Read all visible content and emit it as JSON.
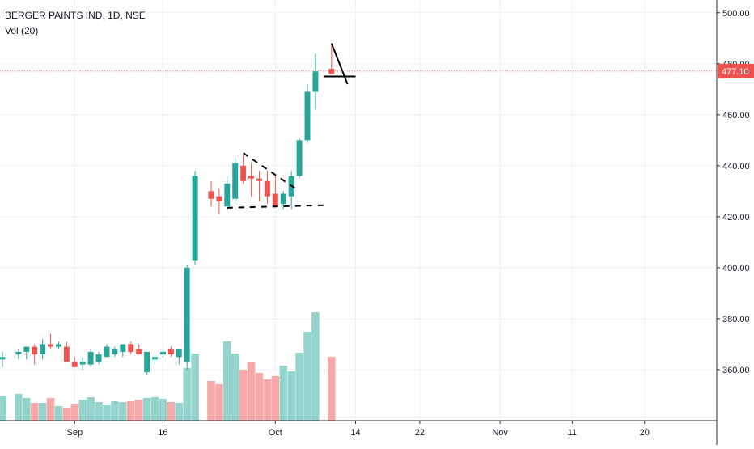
{
  "legend": {
    "title": "BERGER PAINTS IND, 1D, NSE",
    "volume": "Vol (20)"
  },
  "colors": {
    "up": "#26a69a",
    "down": "#ef5350",
    "vol_up": "#94d4cd",
    "vol_down": "#f6a9a8",
    "grid": "#eef0f3",
    "axis_text": "#131722",
    "price_line": "#ef5350",
    "drawing": "#000000"
  },
  "chart_data": {
    "type": "candlestick",
    "title": "BERGER PAINTS IND, 1D, NSE",
    "indicator": "Vol (20)",
    "last_price": 477.1,
    "last_price_label": "477.10",
    "y_axis": {
      "range": [
        340,
        505
      ],
      "ticks": [
        360,
        380,
        400,
        420,
        440,
        460,
        480,
        500
      ],
      "tick_labels": [
        "360.00",
        "380.00",
        "400.00",
        "420.00",
        "440.00",
        "460.00",
        "480.00",
        "500.00"
      ]
    },
    "x_axis": {
      "range_days": [
        0,
        89
      ],
      "ticks": [
        {
          "day": 9,
          "label": "Sep"
        },
        {
          "day": 20,
          "label": "16"
        },
        {
          "day": 34,
          "label": "Oct"
        },
        {
          "day": 44,
          "label": "14"
        },
        {
          "day": 52,
          "label": "22"
        },
        {
          "day": 62,
          "label": "Nov"
        },
        {
          "day": 71,
          "label": "11"
        },
        {
          "day": 80,
          "label": "20"
        }
      ]
    },
    "candles": [
      {
        "day": 0,
        "o": 364,
        "h": 367,
        "l": 361,
        "c": 365,
        "v": 31
      },
      {
        "day": 2,
        "o": 366,
        "h": 368,
        "l": 364,
        "c": 367,
        "v": 33
      },
      {
        "day": 3,
        "o": 367,
        "h": 369,
        "l": 364,
        "c": 369,
        "v": 28
      },
      {
        "day": 4,
        "o": 369,
        "h": 370,
        "l": 362,
        "c": 366,
        "v": 22
      },
      {
        "day": 5,
        "o": 366,
        "h": 372,
        "l": 364,
        "c": 370,
        "v": 22
      },
      {
        "day": 6,
        "o": 370,
        "h": 374,
        "l": 368,
        "c": 369,
        "v": 28
      },
      {
        "day": 7,
        "o": 369,
        "h": 371,
        "l": 368,
        "c": 370,
        "v": 18
      },
      {
        "day": 8,
        "o": 369,
        "h": 371,
        "l": 363,
        "c": 363,
        "v": 16
      },
      {
        "day": 9,
        "o": 363,
        "h": 365,
        "l": 361,
        "c": 361,
        "v": 21
      },
      {
        "day": 10,
        "o": 362,
        "h": 365,
        "l": 360,
        "c": 363,
        "v": 26
      },
      {
        "day": 11,
        "o": 362,
        "h": 368,
        "l": 361,
        "c": 367,
        "v": 29
      },
      {
        "day": 12,
        "o": 363,
        "h": 367,
        "l": 362,
        "c": 366,
        "v": 23
      },
      {
        "day": 13,
        "o": 365,
        "h": 370,
        "l": 365,
        "c": 369,
        "v": 20
      },
      {
        "day": 14,
        "o": 366,
        "h": 369,
        "l": 365,
        "c": 368,
        "v": 24
      },
      {
        "day": 15,
        "o": 367,
        "h": 370,
        "l": 365,
        "c": 370,
        "v": 23
      },
      {
        "day": 16,
        "o": 370,
        "h": 371,
        "l": 366,
        "c": 367,
        "v": 24
      },
      {
        "day": 17,
        "o": 368,
        "h": 370,
        "l": 366,
        "c": 366,
        "v": 26
      },
      {
        "day": 18,
        "o": 359,
        "h": 367,
        "l": 358,
        "c": 367,
        "v": 28
      },
      {
        "day": 19,
        "o": 364,
        "h": 366,
        "l": 362,
        "c": 365,
        "v": 29
      },
      {
        "day": 20,
        "o": 366,
        "h": 368,
        "l": 365,
        "c": 367,
        "v": 27
      },
      {
        "day": 21,
        "o": 368,
        "h": 369,
        "l": 365,
        "c": 366,
        "v": 23
      },
      {
        "day": 22,
        "o": 365,
        "h": 368,
        "l": 362,
        "c": 368,
        "v": 22
      },
      {
        "day": 23,
        "o": 363,
        "h": 401,
        "l": 360,
        "c": 400,
        "v": 65
      },
      {
        "day": 24,
        "o": 403,
        "h": 438,
        "l": 401,
        "c": 436,
        "v": 83
      },
      {
        "day": 26,
        "o": 430,
        "h": 434,
        "l": 424,
        "c": 427,
        "v": 49
      },
      {
        "day": 27,
        "o": 428,
        "h": 431,
        "l": 421,
        "c": 426,
        "v": 45
      },
      {
        "day": 28,
        "o": 424,
        "h": 436,
        "l": 424,
        "c": 433,
        "v": 98
      },
      {
        "day": 29,
        "o": 427,
        "h": 443,
        "l": 425,
        "c": 441,
        "v": 83
      },
      {
        "day": 30,
        "o": 440,
        "h": 444,
        "l": 433,
        "c": 434,
        "v": 63
      },
      {
        "day": 31,
        "o": 436,
        "h": 441,
        "l": 428,
        "c": 435,
        "v": 72
      },
      {
        "day": 32,
        "o": 435,
        "h": 438,
        "l": 426,
        "c": 434,
        "v": 59
      },
      {
        "day": 33,
        "o": 434,
        "h": 438,
        "l": 425,
        "c": 428,
        "v": 51
      },
      {
        "day": 34,
        "o": 429,
        "h": 436,
        "l": 424,
        "c": 424,
        "v": 55
      },
      {
        "day": 35,
        "o": 425,
        "h": 430,
        "l": 423,
        "c": 429,
        "v": 68
      },
      {
        "day": 36,
        "o": 428,
        "h": 438,
        "l": 423,
        "c": 436,
        "v": 61
      },
      {
        "day": 37,
        "o": 436,
        "h": 451,
        "l": 435,
        "c": 450,
        "v": 84
      },
      {
        "day": 38,
        "o": 450,
        "h": 472,
        "l": 449,
        "c": 469,
        "v": 110
      },
      {
        "day": 39,
        "o": 469,
        "h": 484,
        "l": 462,
        "c": 477,
        "v": 134
      },
      {
        "day": 41,
        "o": 478,
        "h": 488,
        "l": 476,
        "c": 476,
        "v": 79
      }
    ],
    "annotations": [
      {
        "type": "dashed-line",
        "from": [
          28,
          423.5
        ],
        "to": [
          40,
          424.5
        ]
      },
      {
        "type": "dashed-line",
        "from": [
          30,
          445
        ],
        "to": [
          37,
          430
        ]
      },
      {
        "type": "solid-line",
        "from": [
          41,
          488
        ],
        "to": [
          43,
          472
        ]
      },
      {
        "type": "solid-line",
        "from": [
          40,
          475
        ],
        "to": [
          44,
          475
        ]
      }
    ],
    "grid": true,
    "volume_max": 150
  }
}
